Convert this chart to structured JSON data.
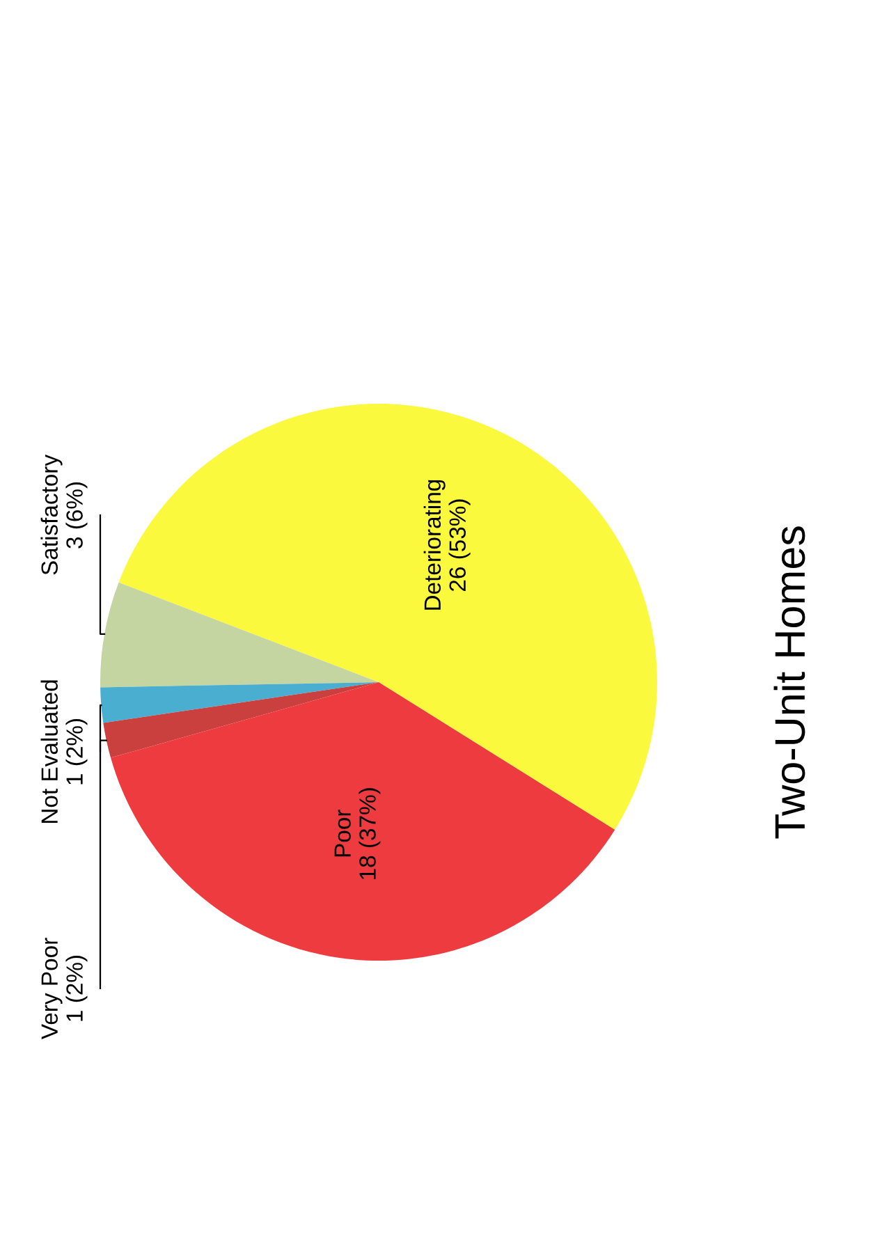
{
  "chart_data": {
    "type": "pie",
    "title": "Two-Unit Homes",
    "categories": [
      "Deteriorating",
      "Satisfactory",
      "Not Evaluated",
      "Very Poor",
      "Poor"
    ],
    "values": [
      26,
      3,
      1,
      1,
      18
    ],
    "value_labels": [
      "26 (53%)",
      "3 (6%)",
      "1 (2%)",
      "1 (2%)",
      "18 (37%)"
    ],
    "colors": [
      "#fbf93e",
      "#c4d5a2",
      "#4aaed0",
      "#c9403f",
      "#ee3b3f"
    ]
  }
}
